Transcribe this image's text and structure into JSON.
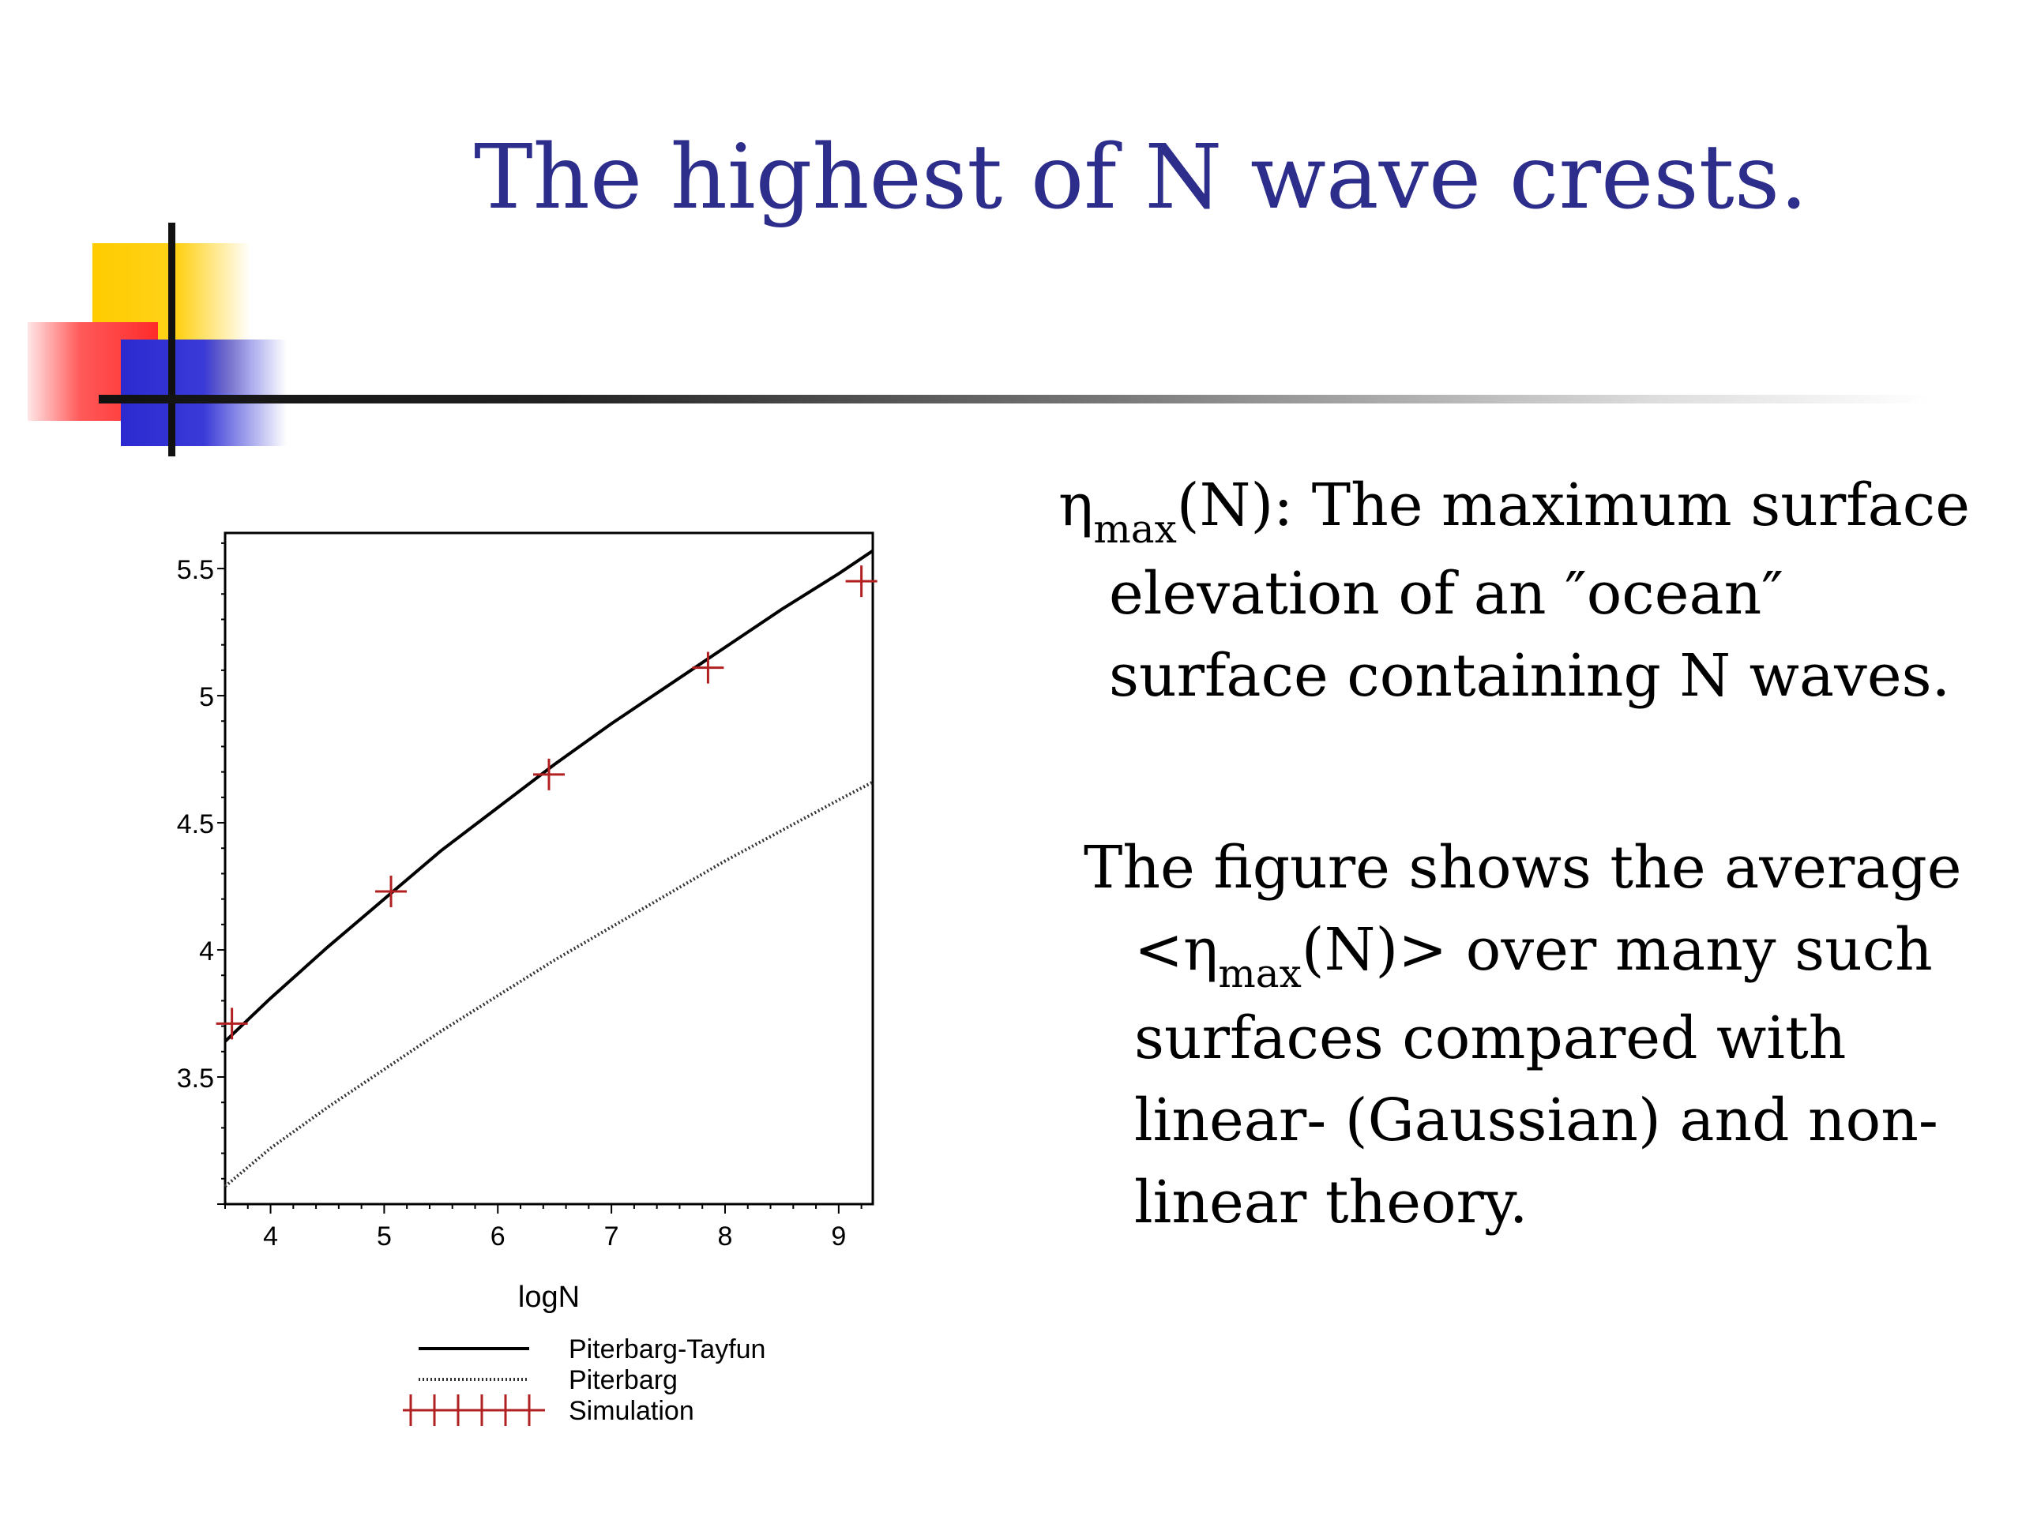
{
  "slide": {
    "title": "The highest of N wave crests."
  },
  "text": {
    "p1": {
      "eta": "η",
      "sub": "max",
      "rest1": "(N): The maximum surface",
      "line2": "elevation of an ″ocean″",
      "line3": "surface containing N waves."
    },
    "p2": {
      "line1": "The figure shows the average",
      "pre": "<η",
      "sub": "max",
      "rest2": "(N)> over many such",
      "line3": "surfaces compared with",
      "line4": "linear- (Gaussian) and non-",
      "line5": "linear theory."
    }
  },
  "chart_data": {
    "type": "line",
    "xlabel": "logN",
    "ylabel": "",
    "xlim": [
      3.6,
      9.3
    ],
    "ylim": [
      3.0,
      5.64
    ],
    "x_ticks": [
      "4",
      "5",
      "6",
      "7",
      "8",
      "9"
    ],
    "y_ticks": [
      "3.5",
      "4",
      "4.5",
      "5",
      "5.5"
    ],
    "series": [
      {
        "name": "Piterbarg-Tayfun",
        "style": "solid",
        "color": "#000000",
        "x": [
          3.6,
          4.0,
          4.5,
          5.0,
          5.5,
          6.0,
          6.5,
          7.0,
          7.5,
          8.0,
          8.5,
          9.0,
          9.3
        ],
        "y": [
          3.64,
          3.81,
          4.01,
          4.2,
          4.39,
          4.56,
          4.73,
          4.89,
          5.04,
          5.19,
          5.34,
          5.48,
          5.57
        ]
      },
      {
        "name": "Piterbarg",
        "style": "dotted",
        "color": "#333333",
        "x": [
          3.6,
          4.0,
          4.5,
          5.0,
          5.5,
          6.0,
          6.5,
          7.0,
          7.5,
          8.0,
          8.5,
          9.0,
          9.3
        ],
        "y": [
          3.07,
          3.22,
          3.38,
          3.53,
          3.68,
          3.82,
          3.96,
          4.09,
          4.22,
          4.35,
          4.47,
          4.59,
          4.66
        ]
      },
      {
        "name": "Simulation",
        "style": "cross",
        "color": "#b02020",
        "x": [
          3.66,
          5.06,
          6.45,
          7.85,
          9.2
        ],
        "y": [
          3.71,
          4.23,
          4.69,
          5.11,
          5.45
        ]
      }
    ],
    "legend_position": "bottom"
  }
}
